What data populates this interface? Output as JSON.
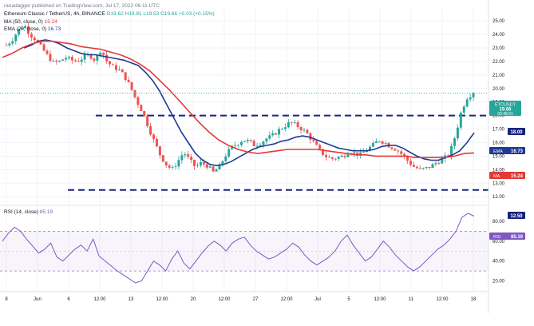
{
  "header": {
    "published_by": "ranadagger published on TradingView.com, Jul 17, 2022 06:11 UTC",
    "symbol_line": "Ethereum Classic / TetherUS, 4h, BINANCE",
    "ohlc": "O19.62 H19.81 L19.53 C19.66 +0.03 (+0.15%)",
    "ma_label": "MA (50, close, 0)",
    "ma_value": "15.24",
    "ema_label": "EMA (20, close, 0)",
    "ema_value": "16.73"
  },
  "badges": {
    "price_symbol": "ETCUSDT",
    "price_value": "19.66",
    "countdown": "03:48:01",
    "level_high": "18.00",
    "ema_name": "EMA",
    "ema_value": "16.73",
    "ma_name": "MA",
    "ma_value": "15.24",
    "level_low": "12.50",
    "rsi_name": "RSI",
    "rsi_value": "85.19"
  },
  "rsi_panel": {
    "label": "RSI (14, close)",
    "value": "85.19"
  },
  "colors": {
    "up": "#26a69a",
    "down": "#ef5350",
    "ema": "#1f3a93",
    "ma": "#e53935",
    "level": "#1a237e",
    "rsi": "#7e57c2",
    "price_line": "#26a69a"
  },
  "chart_data": [
    {
      "type": "candlestick",
      "symbol": "ETCUSDT",
      "timeframe": "4h",
      "y_ticks": [
        "25.00",
        "24.00",
        "23.00",
        "22.00",
        "21.00",
        "20.00",
        "19.00",
        "18.00",
        "17.00",
        "16.00",
        "15.00",
        "14.00",
        "13.00",
        "12.00"
      ],
      "x_ticks": [
        "8",
        "Jun",
        "6",
        "12:00",
        "13",
        "12:00",
        "20",
        "12:00",
        "27",
        "12:00",
        "Jul",
        "5",
        "12:00",
        "11",
        "12:00",
        "18"
      ],
      "ylim": [
        11.6,
        25.6
      ],
      "horizontal_levels": [
        18.0,
        12.5
      ],
      "close_path": [
        23.2,
        23.6,
        24.3,
        24.7,
        24.0,
        23.6,
        23.0,
        22.4,
        21.9,
        22.0,
        22.3,
        22.1,
        22.0,
        22.3,
        22.5,
        22.1,
        22.9,
        22.0,
        21.6,
        21.4,
        20.9,
        20.1,
        19.1,
        18.3,
        17.2,
        16.1,
        15.1,
        14.4,
        14.0,
        14.6,
        15.3,
        14.7,
        14.2,
        14.5,
        14.3,
        13.8,
        14.2,
        15.0,
        15.6,
        15.9,
        16.2,
        16.1,
        15.8,
        16.0,
        16.3,
        16.5,
        16.9,
        17.2,
        17.5,
        17.3,
        17.0,
        16.6,
        16.0,
        15.4,
        15.0,
        14.8,
        14.9,
        15.0,
        15.4,
        15.2,
        15.1,
        15.5,
        15.8,
        16.2,
        16.0,
        15.7,
        15.5,
        15.1,
        14.6,
        14.2,
        14.0,
        14.1,
        14.3,
        14.6,
        14.8,
        15.2,
        16.6,
        18.4,
        19.4,
        19.66
      ],
      "ema": [
        23.0,
        23.2,
        23.5,
        23.6,
        23.5,
        23.3,
        23.0,
        22.8,
        22.6,
        22.5,
        22.5,
        22.4,
        22.3,
        22.2,
        22.1,
        21.9,
        21.7,
        21.2,
        20.6,
        19.8,
        18.8,
        17.8,
        16.8,
        16.0,
        15.2,
        14.7,
        14.4,
        14.3,
        14.4,
        14.6,
        14.9,
        15.2,
        15.5,
        15.7,
        15.8,
        15.9,
        16.1,
        16.2,
        16.4,
        16.5,
        16.4,
        16.2,
        16.0,
        15.8,
        15.6,
        15.5,
        15.4,
        15.4,
        15.4,
        15.5,
        15.7,
        15.8,
        15.8,
        15.6,
        15.3,
        15.0,
        14.8,
        14.7,
        14.7,
        14.9,
        15.1,
        15.4,
        16.0,
        16.73
      ],
      "ma": [
        22.3,
        22.6,
        23.0,
        23.3,
        23.5,
        23.5,
        23.4,
        23.3,
        23.1,
        23.0,
        22.9,
        22.7,
        22.5,
        22.2,
        21.8,
        21.3,
        20.6,
        19.9,
        19.1,
        18.3,
        17.5,
        16.8,
        16.2,
        15.8,
        15.5,
        15.3,
        15.2,
        15.3,
        15.4,
        15.5,
        15.5,
        15.5,
        15.5,
        15.4,
        15.3,
        15.2,
        15.1,
        15.1,
        15.0,
        15.0,
        15.0,
        15.0,
        14.9,
        14.9,
        14.9,
        14.9,
        15.0,
        15.2,
        15.24
      ],
      "last": 19.66
    },
    {
      "type": "line",
      "name": "RSI (14, close)",
      "y_ticks": [
        "80.00",
        "60.00",
        "40.00",
        "20.00"
      ],
      "ylim": [
        10,
        92
      ],
      "bands": [
        70,
        30
      ],
      "values": [
        60,
        68,
        74,
        70,
        62,
        55,
        48,
        52,
        58,
        44,
        40,
        46,
        52,
        56,
        50,
        62,
        45,
        40,
        35,
        30,
        26,
        22,
        18,
        20,
        30,
        40,
        36,
        30,
        42,
        50,
        38,
        32,
        40,
        48,
        55,
        60,
        56,
        50,
        58,
        62,
        64,
        56,
        50,
        46,
        42,
        44,
        48,
        52,
        58,
        54,
        46,
        40,
        36,
        40,
        44,
        50,
        60,
        66,
        56,
        48,
        40,
        44,
        52,
        60,
        54,
        46,
        40,
        34,
        30,
        34,
        40,
        46,
        52,
        56,
        62,
        70,
        84,
        88,
        85.19
      ],
      "last": 85.19
    }
  ]
}
